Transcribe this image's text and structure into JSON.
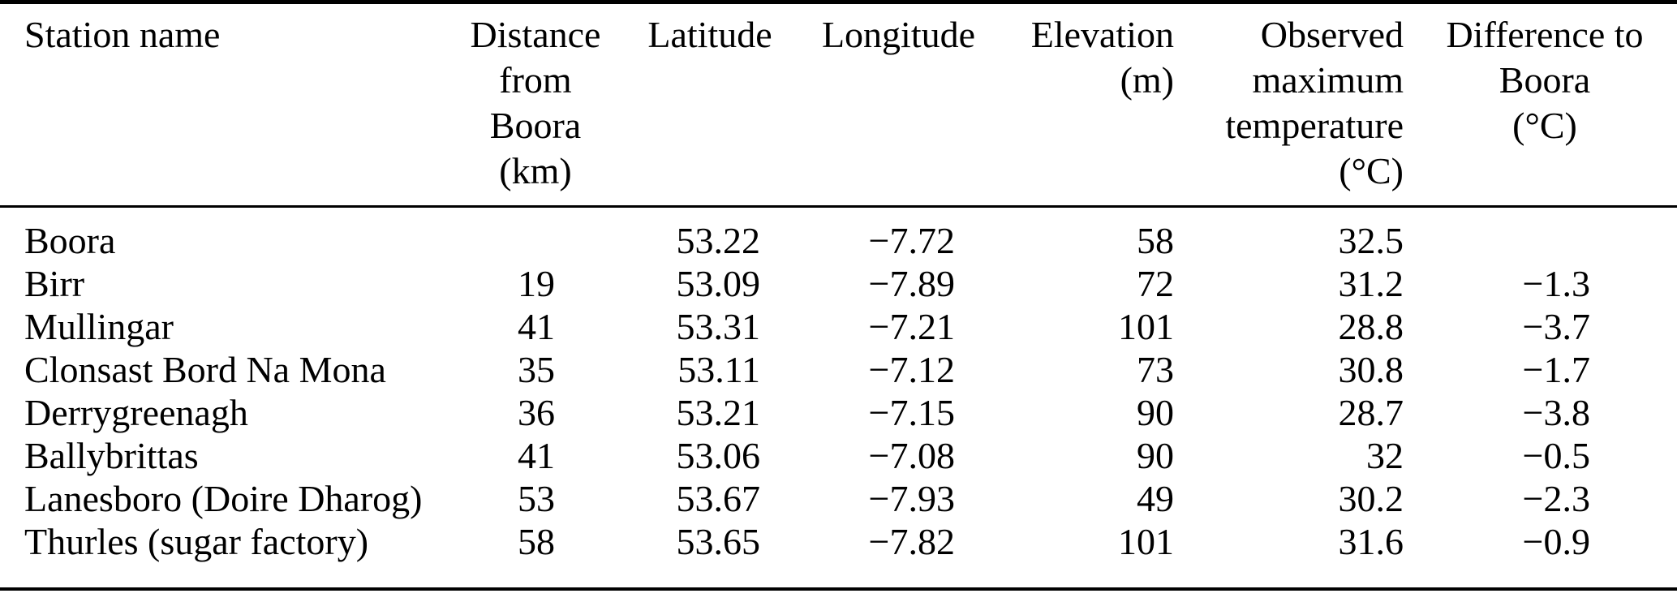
{
  "colors": {
    "background": "#ffffff",
    "text": "#000000",
    "rule": "#000000"
  },
  "table": {
    "headers": {
      "station": {
        "label": "Station name"
      },
      "distance": {
        "lines": [
          "Distance",
          "from",
          "Boora",
          "(km)"
        ]
      },
      "latitude": {
        "label": "Latitude"
      },
      "longitude": {
        "label": "Longitude"
      },
      "elevation": {
        "lines": [
          "Elevation",
          "(m)"
        ]
      },
      "observed_max": {
        "lines": [
          "Observed",
          "maximum",
          "temperature",
          "(°C)"
        ]
      },
      "difference": {
        "lines": [
          "Difference to",
          "Boora",
          "(°C)"
        ]
      }
    },
    "rows": [
      {
        "station": "Boora",
        "distance_km": "",
        "latitude": "53.22",
        "longitude": "−7.72",
        "elevation_m": "58",
        "tmax_c": "32.5",
        "diff_c": ""
      },
      {
        "station": "Birr",
        "distance_km": "19",
        "latitude": "53.09",
        "longitude": "−7.89",
        "elevation_m": "72",
        "tmax_c": "31.2",
        "diff_c": "−1.3"
      },
      {
        "station": "Mullingar",
        "distance_km": "41",
        "latitude": "53.31",
        "longitude": "−7.21",
        "elevation_m": "101",
        "tmax_c": "28.8",
        "diff_c": "−3.7"
      },
      {
        "station": "Clonsast Bord Na Mona",
        "distance_km": "35",
        "latitude": "53.11",
        "longitude": "−7.12",
        "elevation_m": "73",
        "tmax_c": "30.8",
        "diff_c": "−1.7"
      },
      {
        "station": "Derrygreenagh",
        "distance_km": "36",
        "latitude": "53.21",
        "longitude": "−7.15",
        "elevation_m": "90",
        "tmax_c": "28.7",
        "diff_c": "−3.8"
      },
      {
        "station": "Ballybrittas",
        "distance_km": "41",
        "latitude": "53.06",
        "longitude": "−7.08",
        "elevation_m": "90",
        "tmax_c": "32",
        "diff_c": "−0.5"
      },
      {
        "station": "Lanesboro (Doire Dharog)",
        "distance_km": "53",
        "latitude": "53.67",
        "longitude": "−7.93",
        "elevation_m": "49",
        "tmax_c": "30.2",
        "diff_c": "−2.3"
      },
      {
        "station": "Thurles (sugar factory)",
        "distance_km": "58",
        "latitude": "53.65",
        "longitude": "−7.82",
        "elevation_m": "101",
        "tmax_c": "31.6",
        "diff_c": "−0.9"
      }
    ]
  }
}
